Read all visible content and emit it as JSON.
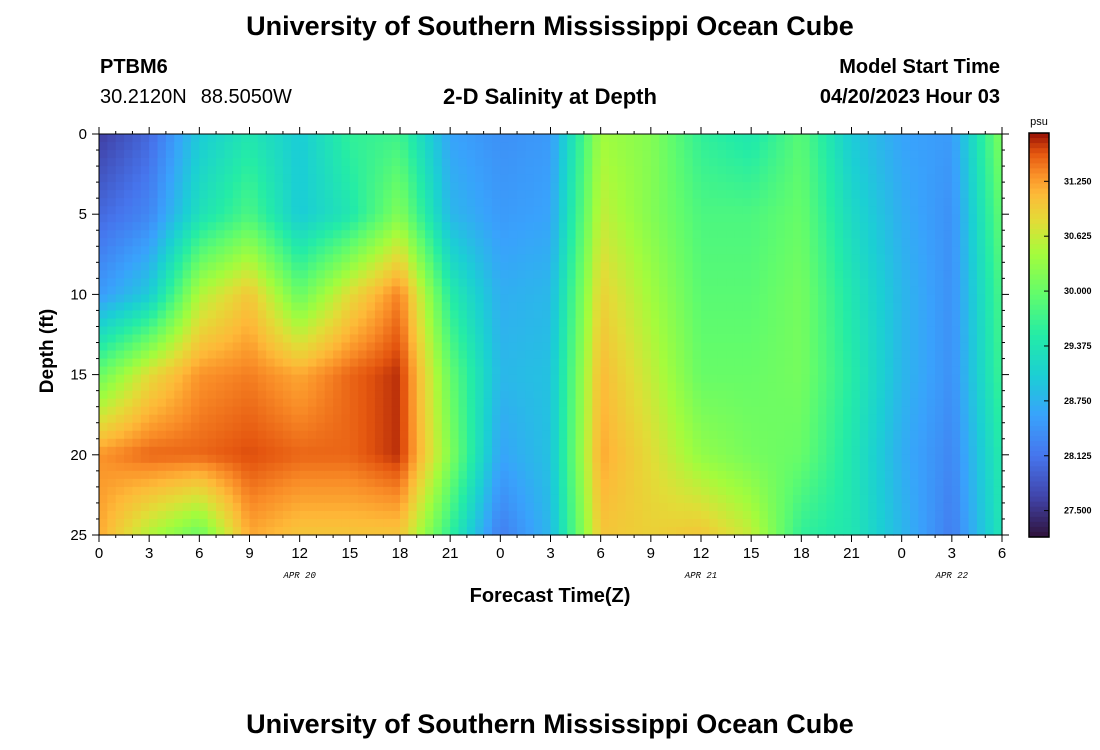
{
  "header": {
    "title": "University of Southern Mississippi Ocean Cube",
    "station": "PTBM6",
    "lat": "30.2120N",
    "lon": "88.5050W",
    "subtitle": "2-D Salinity at Depth",
    "model_start_label": "Model Start Time",
    "model_start_value": "04/20/2023 Hour 03"
  },
  "footer": {
    "title": "University of Southern Mississippi Ocean Cube"
  },
  "chart_data": {
    "type": "heatmap",
    "title": "2-D Salinity at Depth",
    "xlabel": "Forecast Time(Z)",
    "ylabel": "Depth (ft)",
    "x_range_hours": [
      0,
      54
    ],
    "x_tick_hours": [
      0,
      3,
      6,
      9,
      12,
      15,
      18,
      21,
      24,
      27,
      30,
      33,
      36,
      39,
      42,
      45,
      48,
      51,
      54
    ],
    "x_tick_labels": [
      "0",
      "3",
      "6",
      "9",
      "12",
      "15",
      "18",
      "21",
      "0",
      "3",
      "6",
      "9",
      "12",
      "15",
      "18",
      "21",
      "0",
      "3",
      "6"
    ],
    "date_labels": [
      {
        "text": "APR 20",
        "hour": 12
      },
      {
        "text": "APR 21",
        "hour": 36
      },
      {
        "text": "APR 22",
        "hour": 51
      }
    ],
    "y_range_ft": [
      0,
      25
    ],
    "y_ticks": [
      0,
      5,
      10,
      15,
      20,
      25
    ],
    "colorbar": {
      "unit": "psu",
      "min": 27.2,
      "max": 31.8,
      "tick_labels": [
        "31.250",
        "30.625",
        "30.000",
        "29.375",
        "28.750",
        "28.125",
        "27.500"
      ]
    },
    "salinity_psu_grid": {
      "depths_ft": [
        0,
        5,
        10,
        15,
        20,
        25
      ],
      "hours": [
        0,
        3,
        6,
        9,
        12,
        15,
        18,
        21,
        24,
        27,
        30,
        33,
        36,
        39,
        42,
        45,
        48,
        51,
        54
      ],
      "values": [
        [
          27.6,
          28.0,
          29.0,
          29.4,
          29.0,
          29.6,
          29.7,
          28.6,
          28.4,
          28.5,
          30.4,
          30.2,
          29.6,
          29.4,
          29.9,
          29.0,
          28.6,
          28.5,
          30.2
        ],
        [
          28.0,
          28.3,
          29.3,
          29.8,
          29.0,
          29.4,
          30.2,
          28.8,
          28.5,
          28.6,
          30.6,
          30.2,
          29.8,
          29.8,
          30.0,
          29.2,
          28.7,
          28.4,
          30.0
        ],
        [
          28.5,
          29.0,
          30.5,
          31.0,
          30.0,
          30.8,
          31.4,
          29.5,
          28.7,
          28.8,
          30.9,
          30.4,
          29.9,
          29.9,
          30.1,
          29.4,
          28.8,
          28.4,
          29.8
        ],
        [
          30.0,
          30.8,
          31.3,
          31.4,
          31.2,
          31.5,
          31.7,
          30.0,
          28.8,
          28.9,
          31.1,
          30.6,
          30.0,
          30.0,
          30.1,
          29.5,
          28.8,
          28.4,
          29.7
        ],
        [
          31.3,
          31.5,
          31.5,
          31.6,
          31.5,
          31.5,
          31.7,
          30.2,
          28.6,
          28.9,
          31.2,
          30.8,
          30.3,
          30.1,
          30.0,
          29.4,
          28.7,
          28.3,
          29.5
        ],
        [
          31.2,
          30.5,
          30.0,
          31.2,
          31.0,
          31.0,
          31.0,
          29.6,
          28.2,
          28.8,
          31.0,
          30.9,
          31.0,
          30.6,
          29.6,
          29.4,
          28.8,
          28.2,
          29.4
        ]
      ]
    }
  }
}
